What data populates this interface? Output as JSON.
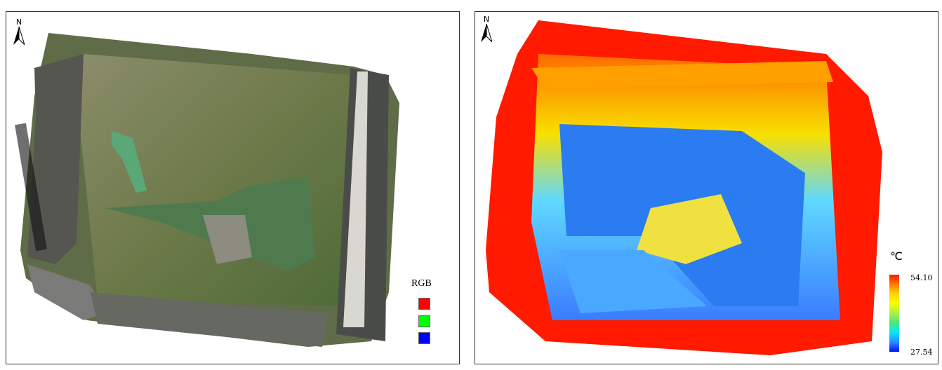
{
  "left_panel": {
    "north_label": "N",
    "legend": {
      "title": "RGB",
      "bands": [
        {
          "name": "red",
          "color": "#ff0000"
        },
        {
          "name": "green",
          "color": "#00ff00"
        },
        {
          "name": "blue",
          "color": "#0000ff"
        }
      ]
    }
  },
  "right_panel": {
    "north_label": "N",
    "legend": {
      "unit": "℃",
      "max": "54.10",
      "min": "27.54",
      "colormap": [
        "#0010ff",
        "#00e8ff",
        "#4ce87a",
        "#f6ff00",
        "#ff7a00",
        "#ff1a00"
      ]
    }
  }
}
